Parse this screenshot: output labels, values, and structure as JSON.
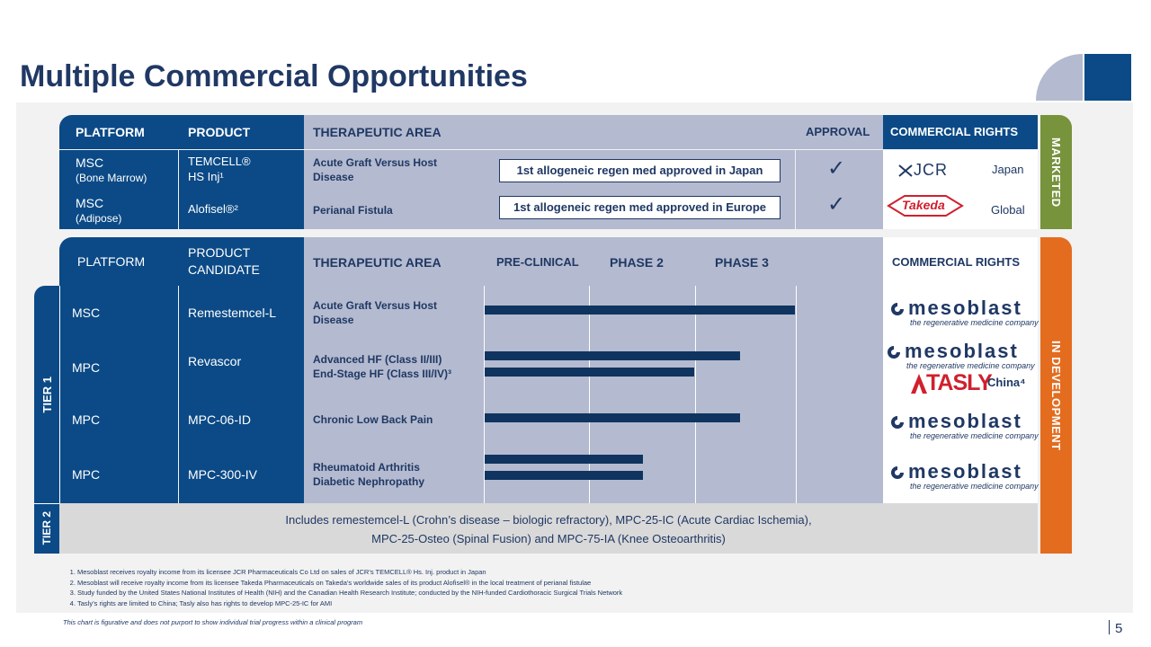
{
  "title": "Multiple Commercial Opportunities",
  "marketed": {
    "side_label": "MARKETED",
    "headers": {
      "platform": "PLATFORM",
      "product": "PRODUCT",
      "therapeutic_area": "THERAPEUTIC AREA",
      "approval": "APPROVAL",
      "commercial_rights": "COMMERCIAL RIGHTS"
    },
    "rows": [
      {
        "platform": "MSC",
        "platform_sub": "(Bone Marrow)",
        "product_line1": "TEMCELL®",
        "product_line2": "HS Inj¹",
        "therapeutic_area": "Acute Graft Versus Host Disease",
        "callout": "1st allogeneic regen med approved in Japan",
        "approval": "✓",
        "partner": "JCR",
        "region": "Japan"
      },
      {
        "platform": "MSC",
        "platform_sub": "(Adipose)",
        "product_line1": "Alofisel®²",
        "therapeutic_area": "Perianal Fistula",
        "callout": "1st allogeneic regen med approved in Europe",
        "approval": "✓",
        "partner": "Takeda",
        "region": "Global"
      }
    ]
  },
  "development": {
    "side_label": "IN DEVELOPMENT",
    "tier1_label": "TIER 1",
    "tier2_label": "TIER 2",
    "headers": {
      "platform": "PLATFORM",
      "product_line1": "PRODUCT",
      "product_line2": "CANDIDATE",
      "therapeutic_area": "THERAPEUTIC AREA",
      "preclinical": "PRE-CLINICAL",
      "phase2": "PHASE  2",
      "phase3": "PHASE 3",
      "commercial_rights": "COMMERCIAL RIGHTS"
    },
    "rows": [
      {
        "platform": "MSC",
        "product": "Remestemcel-L",
        "area_line1": "Acute Graft Versus Host",
        "area_line2": "Disease"
      },
      {
        "platform": "MPC",
        "product": "Revascor",
        "area_line1": "Advanced HF (Class II/III)",
        "area_line2": "End-Stage HF (Class III/IV)³"
      },
      {
        "platform": "MPC",
        "product": "MPC-06-ID",
        "area_line1": "Chronic Low Back Pain"
      },
      {
        "platform": "MPC",
        "product": "MPC-300-IV",
        "area_line1": "Rheumatoid Arthritis",
        "area_line2": "Diabetic Nephropathy"
      }
    ],
    "pipeline_bars": [
      {
        "indication": "Acute Graft Versus Host Disease",
        "progress": 0.96
      },
      {
        "indication": "Advanced HF (Class II/III)",
        "progress": 0.79
      },
      {
        "indication": "End-Stage HF (Class III/IV)",
        "progress": 0.65
      },
      {
        "indication": "Chronic Low Back Pain",
        "progress": 0.79
      },
      {
        "indication": "Rheumatoid Arthritis",
        "progress": 0.49
      },
      {
        "indication": "Diabetic Nephropathy",
        "progress": 0.49
      }
    ],
    "logo_word": "mesoblast",
    "logo_tagline": "the regenerative medicine company",
    "tasly_word": "TASLY",
    "tasly_region": "China⁴",
    "tier2_line1": "Includes remestemcel-L (Crohn’s disease – biologic refractory),  MPC-25-IC (Acute Cardiac Ischemia),",
    "tier2_line2": "MPC-25-Osteo (Spinal Fusion) and MPC-75-IA (Knee Osteoarthritis)"
  },
  "footnotes": [
    "Mesoblast receives royalty income from its licensee JCR Pharmaceuticals Co Ltd on sales of  JCR’s TEMCELL® Hs. Inj. product in Japan",
    "Mesoblast will receive royalty income from its licensee Takeda Pharmaceuticals on Takeda’s worldwide sales of its product Alofisel® in the local treatment of perianal fistulae",
    "Study funded by the United States National Institutes of Health (NIH) and the Canadian Health Research Institute; conducted by the NIH-funded Cardiothoracic Surgical Trials Network",
    "Tasly’s rights are limited to China; Tasly  also has rights to develop MPC-25-IC  for AMI"
  ],
  "disclaimer": "This chart is figurative and does not purport to show individual trial progress within a clinical program",
  "page_number": "5",
  "colors": {
    "navy": "#0b4a86",
    "lavender": "#b4bacf",
    "green_tab": "#77933c",
    "orange_tab": "#e46c1f",
    "bar": "#0f3460"
  }
}
